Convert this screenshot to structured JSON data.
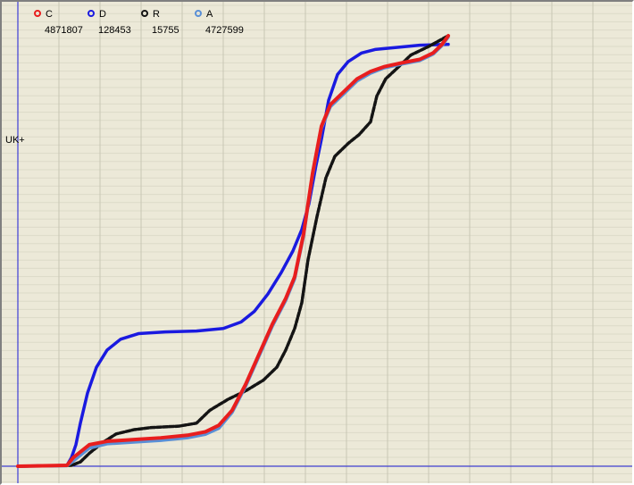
{
  "colors": {
    "background": "#ece9d8",
    "grid_major": "#c8c6b4",
    "grid_minor": "#dcdac8",
    "axis": "#1a1ad6",
    "C": "#e81e1e",
    "D": "#1a1ae0",
    "R": "#141414",
    "A": "#5a8fd6"
  },
  "chart_data": {
    "type": "line",
    "style": "cumulative distribution curves drawn with dense markers",
    "axis_label": "UK+",
    "grid": true,
    "legend_position": "top-left",
    "ylim": [
      0,
      1
    ],
    "series": [
      {
        "name": "C",
        "count": "4871807",
        "color": "#e81e1e",
        "points": [
          [
            0,
            0
          ],
          [
            55,
            0.002
          ],
          [
            62,
            0.02
          ],
          [
            80,
            0.05
          ],
          [
            100,
            0.058
          ],
          [
            130,
            0.062
          ],
          [
            160,
            0.066
          ],
          [
            190,
            0.072
          ],
          [
            210,
            0.08
          ],
          [
            225,
            0.095
          ],
          [
            240,
            0.13
          ],
          [
            255,
            0.19
          ],
          [
            270,
            0.26
          ],
          [
            285,
            0.33
          ],
          [
            300,
            0.39
          ],
          [
            310,
            0.44
          ],
          [
            320,
            0.54
          ],
          [
            330,
            0.68
          ],
          [
            340,
            0.79
          ],
          [
            350,
            0.84
          ],
          [
            365,
            0.87
          ],
          [
            380,
            0.9
          ],
          [
            395,
            0.917
          ],
          [
            410,
            0.928
          ],
          [
            430,
            0.937
          ],
          [
            450,
            0.945
          ],
          [
            465,
            0.96
          ],
          [
            475,
            0.98
          ],
          [
            482,
            1.0
          ]
        ]
      },
      {
        "name": "D",
        "count": "128453",
        "color": "#1a1ae0",
        "points": [
          [
            0,
            0
          ],
          [
            55,
            0.002
          ],
          [
            60,
            0.02
          ],
          [
            65,
            0.05
          ],
          [
            70,
            0.1
          ],
          [
            78,
            0.17
          ],
          [
            88,
            0.23
          ],
          [
            100,
            0.27
          ],
          [
            115,
            0.295
          ],
          [
            135,
            0.308
          ],
          [
            165,
            0.312
          ],
          [
            200,
            0.314
          ],
          [
            230,
            0.32
          ],
          [
            250,
            0.335
          ],
          [
            265,
            0.36
          ],
          [
            280,
            0.4
          ],
          [
            295,
            0.45
          ],
          [
            308,
            0.5
          ],
          [
            318,
            0.55
          ],
          [
            326,
            0.61
          ],
          [
            334,
            0.7
          ],
          [
            340,
            0.76
          ],
          [
            348,
            0.85
          ],
          [
            358,
            0.91
          ],
          [
            370,
            0.94
          ],
          [
            385,
            0.96
          ],
          [
            400,
            0.968
          ],
          [
            420,
            0.972
          ],
          [
            450,
            0.978
          ],
          [
            482,
            0.98
          ]
        ]
      },
      {
        "name": "R",
        "count": "15755",
        "color": "#141414",
        "points": [
          [
            0,
            0
          ],
          [
            60,
            0.002
          ],
          [
            70,
            0.01
          ],
          [
            80,
            0.03
          ],
          [
            95,
            0.055
          ],
          [
            110,
            0.075
          ],
          [
            130,
            0.085
          ],
          [
            150,
            0.09
          ],
          [
            180,
            0.093
          ],
          [
            200,
            0.1
          ],
          [
            215,
            0.13
          ],
          [
            235,
            0.155
          ],
          [
            255,
            0.175
          ],
          [
            275,
            0.2
          ],
          [
            290,
            0.23
          ],
          [
            300,
            0.27
          ],
          [
            310,
            0.32
          ],
          [
            318,
            0.38
          ],
          [
            325,
            0.48
          ],
          [
            335,
            0.58
          ],
          [
            345,
            0.67
          ],
          [
            355,
            0.72
          ],
          [
            370,
            0.75
          ],
          [
            382,
            0.77
          ],
          [
            395,
            0.8
          ],
          [
            402,
            0.86
          ],
          [
            412,
            0.9
          ],
          [
            425,
            0.925
          ],
          [
            440,
            0.955
          ],
          [
            460,
            0.975
          ],
          [
            482,
            1.0
          ]
        ]
      },
      {
        "name": "A",
        "count": "4727599",
        "color": "#5a8fd6",
        "points": [
          [
            0,
            0
          ],
          [
            55,
            0.001
          ],
          [
            62,
            0.012
          ],
          [
            80,
            0.042
          ],
          [
            100,
            0.052
          ],
          [
            130,
            0.056
          ],
          [
            160,
            0.06
          ],
          [
            190,
            0.066
          ],
          [
            210,
            0.074
          ],
          [
            225,
            0.088
          ],
          [
            240,
            0.125
          ],
          [
            255,
            0.185
          ],
          [
            270,
            0.255
          ],
          [
            285,
            0.325
          ],
          [
            300,
            0.385
          ],
          [
            310,
            0.435
          ],
          [
            320,
            0.535
          ],
          [
            330,
            0.675
          ],
          [
            340,
            0.785
          ],
          [
            350,
            0.835
          ],
          [
            365,
            0.865
          ],
          [
            380,
            0.895
          ],
          [
            395,
            0.913
          ],
          [
            410,
            0.925
          ],
          [
            430,
            0.934
          ],
          [
            450,
            0.942
          ],
          [
            465,
            0.957
          ],
          [
            475,
            0.977
          ],
          [
            482,
            0.997
          ]
        ]
      }
    ]
  }
}
